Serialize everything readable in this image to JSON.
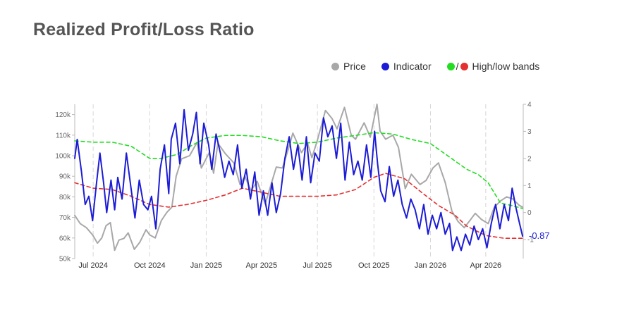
{
  "header": {
    "title": "Realized Profit/Loss Ratio"
  },
  "legend": {
    "price_label": "Price",
    "indicator_label": "Indicator",
    "bands_label": "High/low bands",
    "bands_separator": "/"
  },
  "colors": {
    "price": "#a8a8a8",
    "indicator": "#1c1cd6",
    "high_band": "#22dd22",
    "low_band": "#e53030",
    "grid": "#d6d6d6"
  },
  "chart_data": {
    "type": "line",
    "x_labels": [
      "Jul 2024",
      "Oct 2024",
      "Jan 2025",
      "Apr 2025",
      "Jul 2025",
      "Oct 2025",
      "Jan 2026",
      "Apr 2026"
    ],
    "x_label_dates": [
      "2024-07-01",
      "2024-10-01",
      "2025-01-01",
      "2025-04-01",
      "2025-07-01",
      "2025-10-01",
      "2026-01-01",
      "2026-04-01"
    ],
    "x_range": [
      "2024-06-01",
      "2026-06-01"
    ],
    "left_axis": {
      "ylim": [
        50000,
        125000
      ],
      "ticks": [
        50000,
        60000,
        70000,
        80000,
        90000,
        100000,
        110000,
        120000
      ],
      "tick_labels": [
        "50k",
        "60k",
        "70k",
        "80k",
        "90k",
        "100k",
        "110k",
        "120k"
      ]
    },
    "right_axis": {
      "ylim": [
        -1.7,
        4
      ],
      "ticks": [
        -1,
        0,
        1,
        2,
        3,
        4
      ],
      "tick_labels": [
        "-1",
        "0",
        "1",
        "2",
        "3",
        "4"
      ]
    },
    "grid": "vertical dashed at x labels",
    "legend_position": "top-right",
    "last_value_label": "-0.87",
    "series": [
      {
        "name": "Price",
        "axis": "left",
        "style": "solid",
        "points": [
          [
            "2024-06-01",
            71000
          ],
          [
            "2024-06-10",
            67000
          ],
          [
            "2024-06-20",
            65000
          ],
          [
            "2024-06-30",
            61500
          ],
          [
            "2024-07-08",
            57500
          ],
          [
            "2024-07-15",
            60000
          ],
          [
            "2024-07-22",
            66000
          ],
          [
            "2024-07-29",
            67500
          ],
          [
            "2024-08-05",
            54000
          ],
          [
            "2024-08-12",
            59000
          ],
          [
            "2024-08-20",
            59800
          ],
          [
            "2024-08-27",
            62500
          ],
          [
            "2024-09-06",
            54500
          ],
          [
            "2024-09-15",
            58000
          ],
          [
            "2024-09-25",
            64000
          ],
          [
            "2024-10-01",
            61500
          ],
          [
            "2024-10-10",
            60000
          ],
          [
            "2024-10-20",
            68500
          ],
          [
            "2024-10-29",
            72500
          ],
          [
            "2024-11-06",
            75000
          ],
          [
            "2024-11-13",
            90000
          ],
          [
            "2024-11-22",
            98500
          ],
          [
            "2024-12-05",
            100000
          ],
          [
            "2024-12-17",
            106500
          ],
          [
            "2024-12-24",
            94000
          ],
          [
            "2025-01-06",
            101500
          ],
          [
            "2025-01-13",
            91500
          ],
          [
            "2025-01-20",
            106000
          ],
          [
            "2025-02-01",
            101000
          ],
          [
            "2025-02-15",
            96500
          ],
          [
            "2025-02-25",
            86000
          ],
          [
            "2025-03-05",
            90000
          ],
          [
            "2025-03-15",
            83000
          ],
          [
            "2025-03-25",
            87500
          ],
          [
            "2025-04-07",
            76500
          ],
          [
            "2025-04-15",
            84500
          ],
          [
            "2025-04-25",
            94500
          ],
          [
            "2025-05-05",
            94000
          ],
          [
            "2025-05-15",
            103500
          ],
          [
            "2025-05-22",
            111000
          ],
          [
            "2025-06-05",
            101500
          ],
          [
            "2025-06-15",
            106000
          ],
          [
            "2025-06-22",
            99000
          ],
          [
            "2025-07-01",
            107500
          ],
          [
            "2025-07-14",
            122000
          ],
          [
            "2025-07-25",
            118000
          ],
          [
            "2025-08-02",
            113000
          ],
          [
            "2025-08-14",
            123500
          ],
          [
            "2025-08-25",
            110000
          ],
          [
            "2025-09-01",
            108000
          ],
          [
            "2025-09-15",
            116000
          ],
          [
            "2025-09-25",
            109000
          ],
          [
            "2025-10-06",
            125000
          ],
          [
            "2025-10-11",
            112000
          ],
          [
            "2025-10-20",
            108000
          ],
          [
            "2025-11-01",
            110000
          ],
          [
            "2025-11-10",
            104000
          ],
          [
            "2025-11-21",
            84000
          ],
          [
            "2025-12-01",
            91000
          ],
          [
            "2025-12-15",
            86000
          ],
          [
            "2025-12-25",
            88000
          ],
          [
            "2026-01-05",
            94000
          ],
          [
            "2026-01-14",
            96500
          ],
          [
            "2026-01-25",
            87000
          ],
          [
            "2026-02-05",
            73000
          ],
          [
            "2026-02-15",
            68000
          ],
          [
            "2026-02-25",
            65000
          ],
          [
            "2026-03-05",
            68000
          ],
          [
            "2026-03-15",
            72000
          ],
          [
            "2026-03-25",
            69000
          ],
          [
            "2026-04-05",
            67000
          ],
          [
            "2026-04-15",
            75000
          ],
          [
            "2026-04-25",
            78000
          ],
          [
            "2026-05-05",
            80000
          ],
          [
            "2026-05-15",
            79000
          ],
          [
            "2026-05-25",
            76000
          ],
          [
            "2026-05-31",
            75000
          ]
        ]
      },
      {
        "name": "Indicator",
        "axis": "right",
        "style": "solid",
        "points": [
          [
            "2024-06-01",
            2.0
          ],
          [
            "2024-06-05",
            2.7
          ],
          [
            "2024-06-12",
            1.5
          ],
          [
            "2024-06-18",
            0.3
          ],
          [
            "2024-06-24",
            0.6
          ],
          [
            "2024-06-30",
            -0.3
          ],
          [
            "2024-07-06",
            1.0
          ],
          [
            "2024-07-12",
            2.2
          ],
          [
            "2024-07-18",
            1.1
          ],
          [
            "2024-07-23",
            0.0
          ],
          [
            "2024-07-30",
            1.2
          ],
          [
            "2024-08-05",
            0.1
          ],
          [
            "2024-08-10",
            1.3
          ],
          [
            "2024-08-17",
            0.5
          ],
          [
            "2024-08-24",
            2.2
          ],
          [
            "2024-08-31",
            1.0
          ],
          [
            "2024-09-07",
            -0.2
          ],
          [
            "2024-09-14",
            1.2
          ],
          [
            "2024-09-21",
            0.3
          ],
          [
            "2024-09-28",
            0.1
          ],
          [
            "2024-10-04",
            0.6
          ],
          [
            "2024-10-11",
            -0.6
          ],
          [
            "2024-10-18",
            1.6
          ],
          [
            "2024-10-25",
            2.5
          ],
          [
            "2024-11-01",
            0.7
          ],
          [
            "2024-11-05",
            2.7
          ],
          [
            "2024-11-12",
            3.3
          ],
          [
            "2024-11-19",
            1.8
          ],
          [
            "2024-11-26",
            3.8
          ],
          [
            "2024-12-03",
            2.3
          ],
          [
            "2024-12-10",
            2.9
          ],
          [
            "2024-12-16",
            3.7
          ],
          [
            "2024-12-22",
            1.8
          ],
          [
            "2024-12-28",
            3.3
          ],
          [
            "2025-01-05",
            2.5
          ],
          [
            "2025-01-10",
            1.6
          ],
          [
            "2025-01-17",
            2.9
          ],
          [
            "2025-01-24",
            2.2
          ],
          [
            "2025-01-31",
            1.3
          ],
          [
            "2025-02-07",
            1.9
          ],
          [
            "2025-02-14",
            1.4
          ],
          [
            "2025-02-21",
            2.5
          ],
          [
            "2025-02-28",
            0.9
          ],
          [
            "2025-03-07",
            1.6
          ],
          [
            "2025-03-14",
            0.5
          ],
          [
            "2025-03-21",
            1.5
          ],
          [
            "2025-03-28",
            -0.1
          ],
          [
            "2025-04-04",
            0.8
          ],
          [
            "2025-04-11",
            -0.1
          ],
          [
            "2025-04-18",
            1.1
          ],
          [
            "2025-04-25",
            0.0
          ],
          [
            "2025-05-02",
            0.7
          ],
          [
            "2025-05-09",
            2.0
          ],
          [
            "2025-05-16",
            2.8
          ],
          [
            "2025-05-23",
            1.6
          ],
          [
            "2025-05-30",
            2.5
          ],
          [
            "2025-06-06",
            1.2
          ],
          [
            "2025-06-13",
            2.8
          ],
          [
            "2025-06-20",
            1.1
          ],
          [
            "2025-06-27",
            2.2
          ],
          [
            "2025-07-04",
            1.9
          ],
          [
            "2025-07-11",
            3.5
          ],
          [
            "2025-07-18",
            2.8
          ],
          [
            "2025-07-25",
            3.2
          ],
          [
            "2025-08-01",
            2.0
          ],
          [
            "2025-08-08",
            3.3
          ],
          [
            "2025-08-15",
            1.2
          ],
          [
            "2025-08-22",
            2.6
          ],
          [
            "2025-08-29",
            1.4
          ],
          [
            "2025-09-05",
            1.9
          ],
          [
            "2025-09-12",
            1.2
          ],
          [
            "2025-09-19",
            2.5
          ],
          [
            "2025-09-26",
            1.3
          ],
          [
            "2025-10-02",
            3.0
          ],
          [
            "2025-10-07",
            1.8
          ],
          [
            "2025-10-12",
            0.8
          ],
          [
            "2025-10-19",
            0.4
          ],
          [
            "2025-10-26",
            1.7
          ],
          [
            "2025-11-02",
            0.6
          ],
          [
            "2025-11-09",
            1.2
          ],
          [
            "2025-11-16",
            0.3
          ],
          [
            "2025-11-23",
            -0.2
          ],
          [
            "2025-11-30",
            0.5
          ],
          [
            "2025-12-07",
            0.1
          ],
          [
            "2025-12-14",
            -0.6
          ],
          [
            "2025-12-21",
            0.3
          ],
          [
            "2025-12-28",
            -0.8
          ],
          [
            "2026-01-04",
            -0.1
          ],
          [
            "2026-01-11",
            -0.6
          ],
          [
            "2026-01-18",
            0.0
          ],
          [
            "2026-01-25",
            -0.8
          ],
          [
            "2026-02-01",
            -0.4
          ],
          [
            "2026-02-06",
            -1.4
          ],
          [
            "2026-02-13",
            -0.9
          ],
          [
            "2026-02-20",
            -1.4
          ],
          [
            "2026-02-27",
            -0.8
          ],
          [
            "2026-03-06",
            -1.2
          ],
          [
            "2026-03-13",
            -0.5
          ],
          [
            "2026-03-20",
            -1.0
          ],
          [
            "2026-03-27",
            -0.6
          ],
          [
            "2026-04-03",
            -1.3
          ],
          [
            "2026-04-10",
            -0.4
          ],
          [
            "2026-04-17",
            0.3
          ],
          [
            "2026-04-24",
            -0.6
          ],
          [
            "2026-05-01",
            0.3
          ],
          [
            "2026-05-08",
            -0.3
          ],
          [
            "2026-05-14",
            0.9
          ],
          [
            "2026-05-20",
            0.2
          ],
          [
            "2026-05-26",
            -0.4
          ],
          [
            "2026-05-31",
            -0.87
          ]
        ]
      },
      {
        "name": "High band",
        "axis": "right",
        "style": "dashed",
        "points": [
          [
            "2024-06-01",
            2.65
          ],
          [
            "2024-07-01",
            2.6
          ],
          [
            "2024-08-01",
            2.6
          ],
          [
            "2024-09-01",
            2.45
          ],
          [
            "2024-10-01",
            2.0
          ],
          [
            "2024-10-20",
            2.0
          ],
          [
            "2024-11-15",
            2.15
          ],
          [
            "2024-12-10",
            2.5
          ],
          [
            "2025-01-01",
            2.75
          ],
          [
            "2025-02-01",
            2.85
          ],
          [
            "2025-03-01",
            2.85
          ],
          [
            "2025-04-01",
            2.8
          ],
          [
            "2025-05-01",
            2.65
          ],
          [
            "2025-06-01",
            2.55
          ],
          [
            "2025-07-01",
            2.6
          ],
          [
            "2025-08-01",
            2.75
          ],
          [
            "2025-09-01",
            2.85
          ],
          [
            "2025-10-01",
            2.95
          ],
          [
            "2025-11-01",
            2.9
          ],
          [
            "2025-12-01",
            2.7
          ],
          [
            "2026-01-01",
            2.55
          ],
          [
            "2026-02-01",
            2.05
          ],
          [
            "2026-03-01",
            1.6
          ],
          [
            "2026-03-20",
            1.4
          ],
          [
            "2026-04-05",
            1.1
          ],
          [
            "2026-04-25",
            0.35
          ],
          [
            "2026-05-15",
            0.25
          ],
          [
            "2026-05-31",
            0.15
          ]
        ]
      },
      {
        "name": "Low band",
        "axis": "right",
        "style": "dashed",
        "points": [
          [
            "2024-06-01",
            1.1
          ],
          [
            "2024-07-01",
            0.9
          ],
          [
            "2024-08-01",
            0.85
          ],
          [
            "2024-09-01",
            0.6
          ],
          [
            "2024-10-01",
            0.3
          ],
          [
            "2024-11-01",
            0.2
          ],
          [
            "2024-12-01",
            0.3
          ],
          [
            "2025-01-01",
            0.45
          ],
          [
            "2025-02-01",
            0.65
          ],
          [
            "2025-03-01",
            0.9
          ],
          [
            "2025-04-01",
            0.75
          ],
          [
            "2025-05-01",
            0.6
          ],
          [
            "2025-06-01",
            0.6
          ],
          [
            "2025-07-01",
            0.6
          ],
          [
            "2025-08-01",
            0.65
          ],
          [
            "2025-09-01",
            0.85
          ],
          [
            "2025-10-01",
            1.3
          ],
          [
            "2025-10-20",
            1.45
          ],
          [
            "2025-11-20",
            1.25
          ],
          [
            "2025-12-20",
            0.7
          ],
          [
            "2026-01-15",
            0.25
          ],
          [
            "2026-02-10",
            -0.1
          ],
          [
            "2026-03-01",
            -0.5
          ],
          [
            "2026-04-01",
            -0.85
          ],
          [
            "2026-05-01",
            -0.95
          ],
          [
            "2026-05-31",
            -0.95
          ]
        ]
      }
    ]
  }
}
